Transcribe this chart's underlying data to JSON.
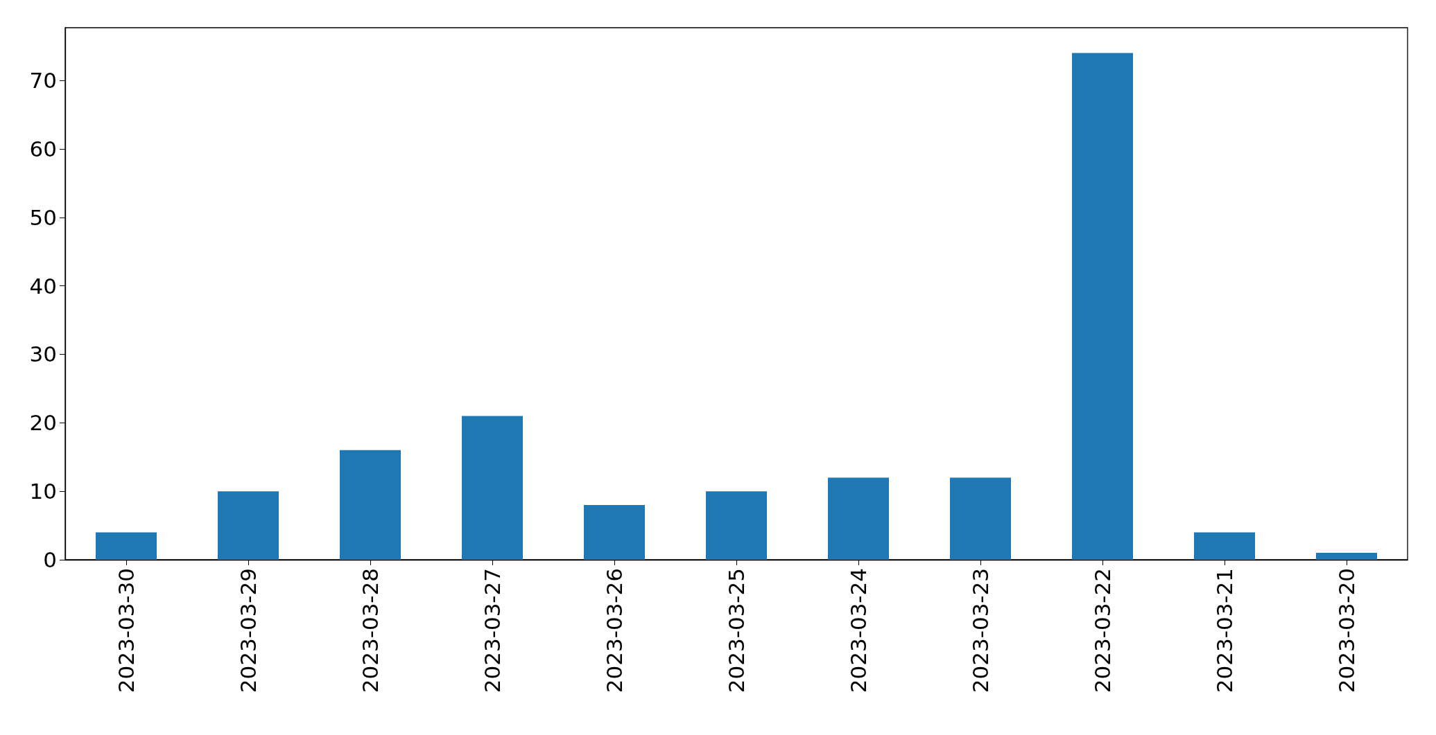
{
  "chart_data": {
    "type": "bar",
    "categories": [
      "2023-03-30",
      "2023-03-29",
      "2023-03-28",
      "2023-03-27",
      "2023-03-26",
      "2023-03-25",
      "2023-03-24",
      "2023-03-23",
      "2023-03-22",
      "2023-03-21",
      "2023-03-20"
    ],
    "values": [
      4,
      10,
      16,
      21,
      8,
      10,
      12,
      12,
      74,
      4,
      1
    ],
    "color": "#1f77b4",
    "ylim": [
      0,
      77.7
    ],
    "yticks": [
      0,
      10,
      20,
      30,
      40,
      50,
      60,
      70
    ],
    "grid": false
  }
}
